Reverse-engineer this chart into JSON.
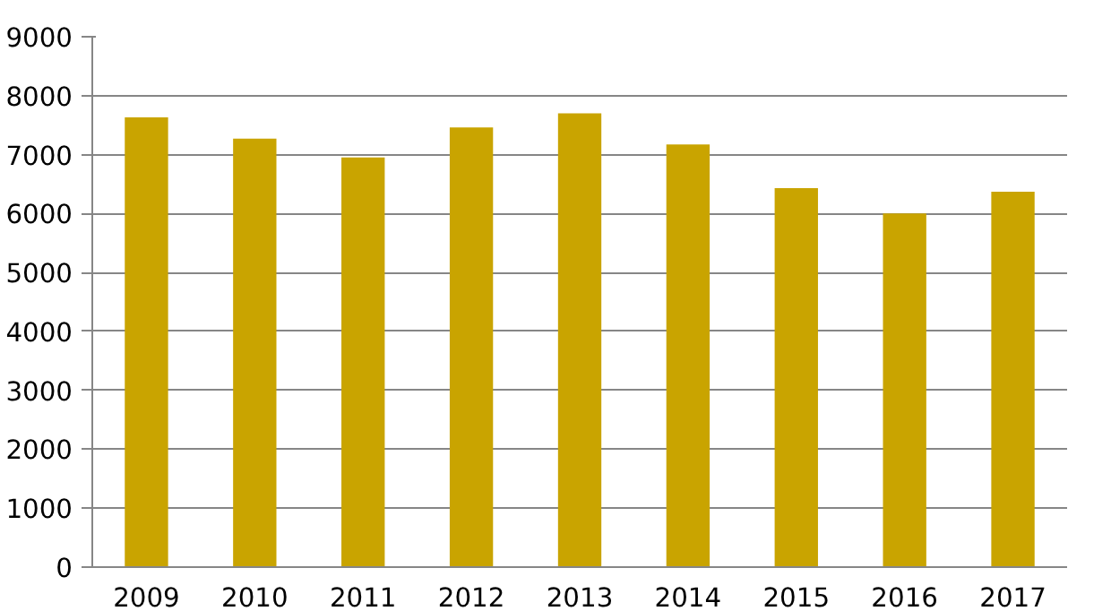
{
  "chart_data": {
    "type": "bar",
    "categories": [
      "2009",
      "2010",
      "2011",
      "2012",
      "2013",
      "2014",
      "2015",
      "2016",
      "2017"
    ],
    "values": [
      7630,
      7270,
      6950,
      7460,
      7700,
      7170,
      6430,
      6000,
      6370
    ],
    "color": "#c9a400",
    "ylim": [
      0,
      9000
    ],
    "yticks": [
      0,
      1000,
      2000,
      3000,
      4000,
      5000,
      6000,
      7000,
      8000,
      9000
    ],
    "grid": "y"
  }
}
